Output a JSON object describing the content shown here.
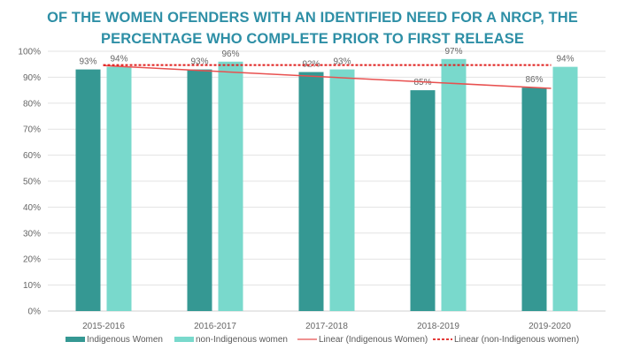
{
  "chart_data": {
    "type": "bar",
    "title": "OF THE WOMEN OFENDERS WITH AN IDENTIFIED NEED FOR A NRCP, THE PERCENTAGE WHO COMPLETE PRIOR TO FIRST RELEASE",
    "title_lines": [
      "OF THE WOMEN OFENDERS WITH AN IDENTIFIED NEED FOR A NRCP, THE",
      "PERCENTAGE WHO COMPLETE PRIOR TO FIRST RELEASE"
    ],
    "xlabel": "",
    "ylabel": "",
    "categories": [
      "2015-2016",
      "2016-2017",
      "2017-2018",
      "2018-2019",
      "2019-2020"
    ],
    "series": [
      {
        "name": "Indigenous Women",
        "values": [
          93,
          93,
          92,
          85,
          86
        ],
        "color": "#359893",
        "labels": [
          "93%",
          "93%",
          "92%",
          "85%",
          "86%"
        ]
      },
      {
        "name": "non-Indigenous women",
        "values": [
          94,
          96,
          93,
          97,
          94
        ],
        "color": "#79d9cc",
        "labels": [
          "94%",
          "96%",
          "93%",
          "97%",
          "94%"
        ]
      }
    ],
    "trendlines": [
      {
        "name": "Linear (Indigenous Women)",
        "series": "Indigenous Women",
        "style": "solid",
        "color": "#e8504f",
        "start": 94.5,
        "end": 85.7
      },
      {
        "name": "Linear (non-Indigenous women)",
        "series": "non-Indigenous women",
        "style": "dashed",
        "color": "#e0201f",
        "start": 94.7,
        "end": 94.7
      }
    ],
    "yticks": [
      "0%",
      "10%",
      "20%",
      "30%",
      "40%",
      "50%",
      "60%",
      "70%",
      "80%",
      "90%",
      "100%"
    ],
    "ylim": [
      0,
      100
    ],
    "grid": true,
    "legend": "bottom"
  }
}
